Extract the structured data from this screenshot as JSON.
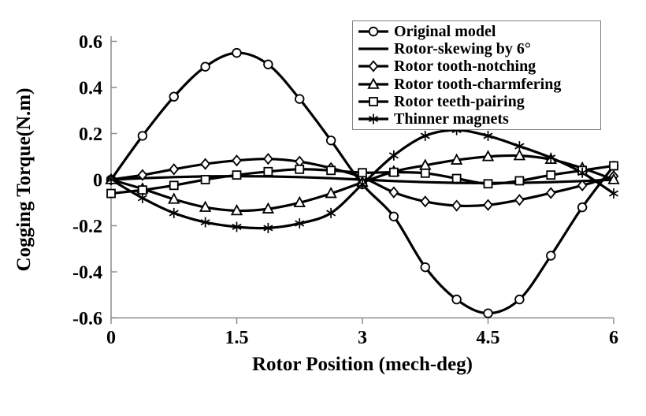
{
  "figure": {
    "background_color": "#ffffff",
    "axis_color": "#8c8c8c",
    "curve_color": "#000000",
    "text_color": "#000000"
  },
  "chart_data": {
    "type": "line",
    "title": "",
    "xlabel": "Rotor Position (mech-deg)",
    "ylabel": "Cogging Torque(N.m)",
    "xlim": [
      0,
      6
    ],
    "ylim": [
      -0.6,
      0.6
    ],
    "grid": false,
    "legend_position": "top-center-inside",
    "xticks": {
      "values": [
        0,
        1.5,
        3,
        4.5,
        6
      ],
      "labels": [
        "0",
        "1.5",
        "3",
        "4.5",
        "6"
      ]
    },
    "yticks": {
      "values": [
        0.6,
        0.4,
        0.2,
        0,
        -0.2,
        -0.4,
        -0.6
      ],
      "labels": [
        "0.6",
        "0.4",
        "0.2",
        "0",
        "-0.2",
        "-0.4",
        "-0.6"
      ]
    },
    "x": [
      0,
      0.375,
      0.75,
      1.125,
      1.5,
      1.875,
      2.25,
      2.625,
      3,
      3.375,
      3.75,
      4.125,
      4.5,
      4.875,
      5.25,
      5.625,
      6
    ],
    "series": [
      {
        "name": "Original model",
        "marker": "circle",
        "values": [
          0,
          0.19,
          0.36,
          0.49,
          0.55,
          0.5,
          0.35,
          0.17,
          -0.02,
          -0.16,
          -0.38,
          -0.52,
          -0.58,
          -0.52,
          -0.33,
          -0.12,
          0.06
        ]
      },
      {
        "name": "Rotor-skewing by 6°",
        "marker": "none",
        "values": [
          0,
          0.006,
          0.011,
          0.014,
          0.015,
          0.014,
          0.011,
          0.006,
          0,
          -0.006,
          -0.011,
          -0.014,
          -0.015,
          -0.014,
          -0.011,
          -0.006,
          0
        ]
      },
      {
        "name": "Rotor tooth-notching",
        "marker": "diamond",
        "values": [
          0,
          0.02,
          0.045,
          0.068,
          0.083,
          0.09,
          0.078,
          0.05,
          0.01,
          -0.055,
          -0.095,
          -0.113,
          -0.11,
          -0.088,
          -0.058,
          -0.025,
          0.015
        ]
      },
      {
        "name": "Rotor tooth-charmfering",
        "marker": "triangle",
        "values": [
          0,
          -0.04,
          -0.085,
          -0.12,
          -0.135,
          -0.127,
          -0.1,
          -0.06,
          -0.012,
          0.035,
          0.062,
          0.085,
          0.1,
          0.104,
          0.088,
          0.05,
          0
        ]
      },
      {
        "name": "Rotor teeth-pairing",
        "marker": "square",
        "values": [
          -0.06,
          -0.045,
          -0.025,
          0,
          0.02,
          0.035,
          0.045,
          0.04,
          0.03,
          0.032,
          0.028,
          0.005,
          -0.018,
          -0.005,
          0.02,
          0.04,
          0.06
        ]
      },
      {
        "name": "Thinner magnets",
        "marker": "asterisk",
        "values": [
          0,
          -0.08,
          -0.145,
          -0.185,
          -0.205,
          -0.21,
          -0.19,
          -0.145,
          -0.02,
          0.105,
          0.19,
          0.215,
          0.19,
          0.145,
          0.095,
          0.03,
          -0.06
        ]
      }
    ]
  }
}
